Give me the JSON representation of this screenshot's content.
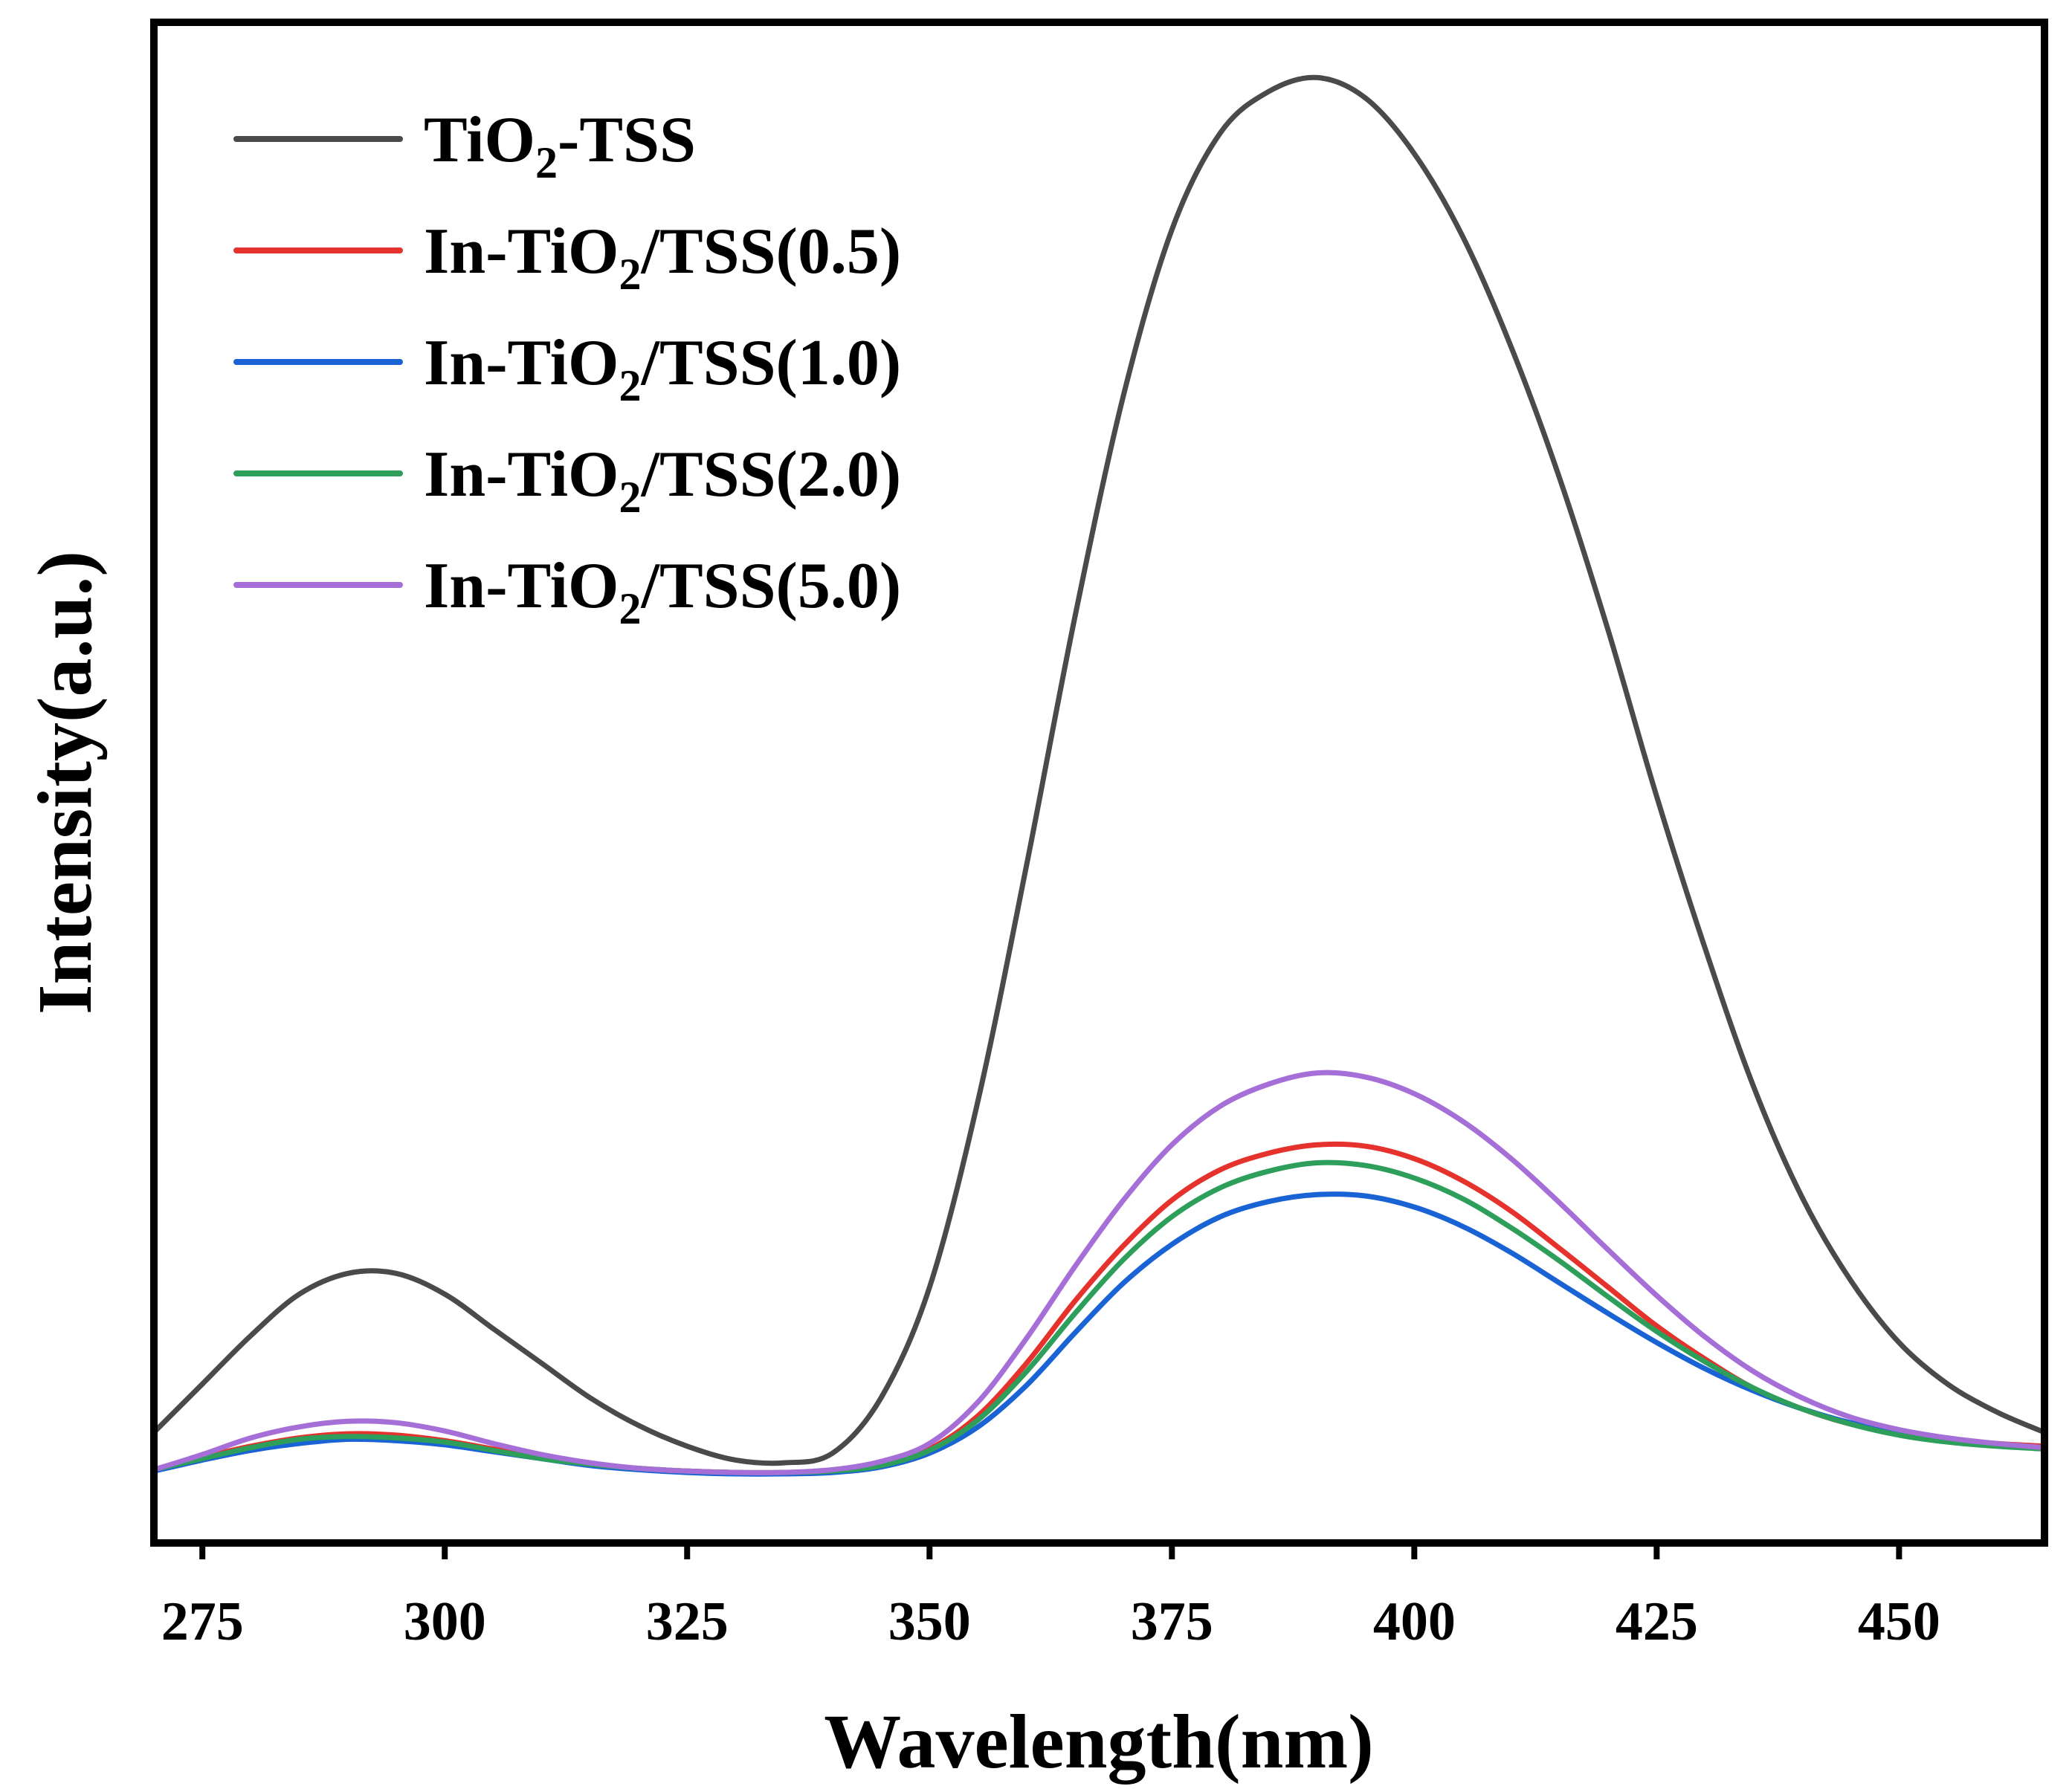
{
  "chart_data": {
    "type": "line",
    "title": "",
    "xlabel": "Wavelength(nm)",
    "ylabel": "Intensity(a.u.)",
    "xlim": [
      270,
      465
    ],
    "ylim": [
      -0.5,
      10.5
    ],
    "xticks": [
      275,
      300,
      325,
      350,
      375,
      400,
      425,
      450
    ],
    "yticks_shown": false,
    "grid": false,
    "legend_position": "top-left",
    "series": [
      {
        "name": "TiO2-TSS",
        "label_main": "TiO",
        "label_sub": "2",
        "label_tail": "-TSS",
        "color": "#4a4a4a",
        "x": [
          270,
          275,
          280,
          285,
          290,
          295,
          300,
          305,
          310,
          315,
          320,
          325,
          330,
          335,
          340,
          345,
          350,
          355,
          360,
          365,
          370,
          375,
          380,
          385,
          390,
          395,
          400,
          405,
          410,
          415,
          420,
          425,
          430,
          435,
          440,
          445,
          450,
          455,
          460,
          465
        ],
        "y": [
          0.3,
          0.65,
          1.0,
          1.3,
          1.45,
          1.45,
          1.3,
          1.05,
          0.8,
          0.55,
          0.35,
          0.2,
          0.1,
          0.08,
          0.15,
          0.55,
          1.35,
          2.7,
          4.4,
          6.2,
          7.8,
          9.0,
          9.7,
          10.0,
          10.1,
          9.95,
          9.55,
          8.95,
          8.15,
          7.2,
          6.1,
          4.9,
          3.8,
          2.8,
          2.0,
          1.4,
          0.95,
          0.65,
          0.45,
          0.3
        ]
      },
      {
        "name": "In-TiO2/TSS(0.5)",
        "label_main": "In-TiO",
        "label_sub": "2",
        "label_tail": "/TSS(0.5)",
        "color": "#e5322d",
        "x": [
          270,
          275,
          280,
          285,
          290,
          295,
          300,
          305,
          310,
          315,
          320,
          325,
          330,
          335,
          340,
          345,
          350,
          355,
          360,
          365,
          370,
          375,
          380,
          385,
          390,
          395,
          400,
          405,
          410,
          415,
          420,
          425,
          430,
          435,
          440,
          445,
          450,
          455,
          460,
          465
        ],
        "y": [
          0.03,
          0.12,
          0.2,
          0.26,
          0.29,
          0.28,
          0.24,
          0.18,
          0.12,
          0.07,
          0.04,
          0.02,
          0.01,
          0.01,
          0.02,
          0.07,
          0.18,
          0.42,
          0.8,
          1.25,
          1.65,
          1.98,
          2.2,
          2.32,
          2.38,
          2.37,
          2.28,
          2.12,
          1.9,
          1.63,
          1.35,
          1.07,
          0.83,
          0.62,
          0.47,
          0.36,
          0.29,
          0.25,
          0.22,
          0.2
        ]
      },
      {
        "name": "In-TiO2/TSS(1.0)",
        "label_main": "In-TiO",
        "label_sub": "2",
        "label_tail": "/TSS(1.0)",
        "color": "#1a63d4",
        "x": [
          270,
          275,
          280,
          285,
          290,
          295,
          300,
          305,
          310,
          315,
          320,
          325,
          330,
          335,
          340,
          345,
          350,
          355,
          360,
          365,
          370,
          375,
          380,
          385,
          390,
          395,
          400,
          405,
          410,
          415,
          420,
          425,
          430,
          435,
          440,
          445,
          450,
          455,
          460,
          465
        ],
        "y": [
          0.02,
          0.1,
          0.17,
          0.22,
          0.25,
          0.24,
          0.21,
          0.16,
          0.11,
          0.06,
          0.03,
          0.01,
          0.0,
          0.0,
          0.01,
          0.05,
          0.15,
          0.34,
          0.64,
          1.02,
          1.38,
          1.66,
          1.86,
          1.97,
          2.02,
          2.01,
          1.93,
          1.79,
          1.6,
          1.38,
          1.16,
          0.95,
          0.76,
          0.6,
          0.47,
          0.37,
          0.3,
          0.25,
          0.21,
          0.18
        ]
      },
      {
        "name": "In-TiO2/TSS(2.0)",
        "label_main": "In-TiO",
        "label_sub": "2",
        "label_tail": "/TSS(2.0)",
        "color": "#2e9e5b",
        "x": [
          270,
          275,
          280,
          285,
          290,
          295,
          300,
          305,
          310,
          315,
          320,
          325,
          330,
          335,
          340,
          345,
          350,
          355,
          360,
          365,
          370,
          375,
          380,
          385,
          390,
          395,
          400,
          405,
          410,
          415,
          420,
          425,
          430,
          435,
          440,
          445,
          450,
          455,
          460,
          465
        ],
        "y": [
          0.03,
          0.11,
          0.19,
          0.25,
          0.27,
          0.26,
          0.23,
          0.17,
          0.11,
          0.07,
          0.04,
          0.02,
          0.01,
          0.01,
          0.02,
          0.06,
          0.17,
          0.39,
          0.74,
          1.16,
          1.55,
          1.86,
          2.07,
          2.19,
          2.25,
          2.23,
          2.14,
          1.99,
          1.78,
          1.54,
          1.28,
          1.03,
          0.81,
          0.62,
          0.47,
          0.36,
          0.28,
          0.23,
          0.2,
          0.18
        ]
      },
      {
        "name": "In-TiO2/TSS(5.0)",
        "label_main": "In-TiO",
        "label_sub": "2",
        "label_tail": "/TSS(5.0)",
        "color": "#a66fd8",
        "x": [
          270,
          275,
          280,
          285,
          290,
          295,
          300,
          305,
          310,
          315,
          320,
          325,
          330,
          335,
          340,
          345,
          350,
          355,
          360,
          365,
          370,
          375,
          380,
          385,
          390,
          395,
          400,
          405,
          410,
          415,
          420,
          425,
          430,
          435,
          440,
          445,
          450,
          455,
          460,
          465
        ],
        "y": [
          0.03,
          0.14,
          0.26,
          0.34,
          0.38,
          0.37,
          0.31,
          0.22,
          0.14,
          0.08,
          0.04,
          0.02,
          0.01,
          0.01,
          0.03,
          0.09,
          0.22,
          0.52,
          0.98,
          1.5,
          1.98,
          2.38,
          2.66,
          2.82,
          2.9,
          2.87,
          2.75,
          2.55,
          2.28,
          1.96,
          1.62,
          1.29,
          0.99,
          0.74,
          0.55,
          0.41,
          0.32,
          0.26,
          0.22,
          0.19
        ]
      }
    ]
  }
}
